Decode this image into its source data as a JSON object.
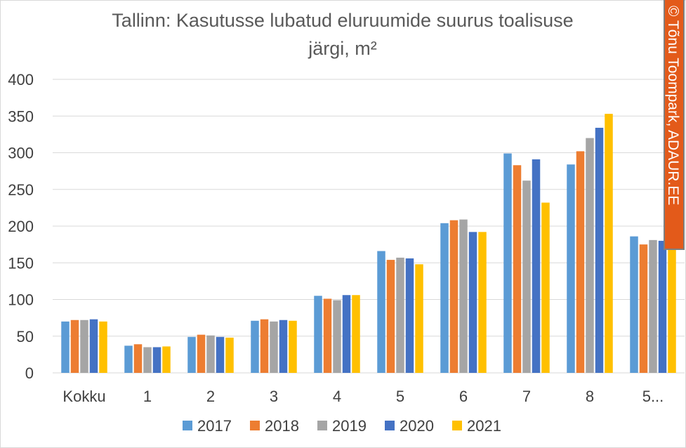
{
  "chart_data": {
    "type": "bar",
    "title_line1": "Tallinn: Kasutusse lubatud eluruumide suurus toalisuse",
    "title_line2": "järgi, m²",
    "categories": [
      "Kokku",
      "1",
      "2",
      "3",
      "4",
      "5",
      "6",
      "7",
      "8",
      "5..."
    ],
    "series": [
      {
        "name": "2017",
        "color": "#5B9BD5",
        "values": [
          70,
          37,
          49,
          71,
          105,
          166,
          204,
          299,
          284,
          186
        ]
      },
      {
        "name": "2018",
        "color": "#ED7D31",
        "values": [
          72,
          39,
          52,
          73,
          101,
          154,
          208,
          283,
          302,
          175
        ]
      },
      {
        "name": "2019",
        "color": "#A5A5A5",
        "values": [
          72,
          35,
          51,
          70,
          99,
          157,
          209,
          262,
          320,
          181
        ]
      },
      {
        "name": "2020",
        "color": "#4472C4",
        "values": [
          73,
          35,
          49,
          72,
          106,
          156,
          192,
          291,
          334,
          180
        ]
      },
      {
        "name": "2021",
        "color": "#FFC000",
        "values": [
          70,
          36,
          48,
          71,
          106,
          148,
          192,
          232,
          353,
          169
        ]
      }
    ],
    "ylim": [
      0,
      400
    ],
    "yticks": [
      0,
      50,
      100,
      150,
      200,
      250,
      300,
      350,
      400
    ],
    "grid": true,
    "legend_position": "bottom"
  },
  "watermark": {
    "text": "© Tõnu Toompark, ADAUR.EE",
    "bg_color": "#E35A1A",
    "border_color": "#7F7F7F"
  }
}
